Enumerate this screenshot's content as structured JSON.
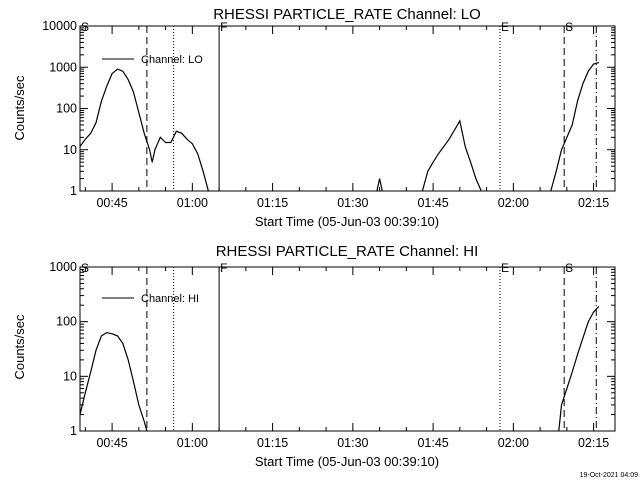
{
  "chart_data": [
    {
      "type": "line",
      "title": "RHESSI PARTICLE_RATE Channel: LO",
      "xlabel": "Start Time (05-Jun-03 00:39:10)",
      "ylabel": "Counts/sec",
      "yscale": "log",
      "ylim": [
        1,
        10000
      ],
      "xlim_minutes": [
        0,
        100
      ],
      "xtick_minutes": [
        6,
        21,
        36,
        51,
        66,
        81,
        96
      ],
      "xtick_labels": [
        "00:45",
        "01:00",
        "01:15",
        "01:30",
        "01:45",
        "02:00",
        "02:15"
      ],
      "ytick_values": [
        1,
        10,
        100,
        1000,
        10000
      ],
      "ytick_labels": [
        "1",
        "10",
        "100",
        "1000",
        "10000"
      ],
      "legend": "Channel: LO",
      "series": [
        {
          "name": "Channel: LO",
          "segments": [
            [
              [
                0,
                12
              ],
              [
                1,
                18
              ],
              [
                2,
                25
              ],
              [
                3,
                45
              ],
              [
                4,
                150
              ],
              [
                5,
                350
              ],
              [
                6,
                700
              ],
              [
                7,
                900
              ],
              [
                8,
                800
              ],
              [
                9,
                500
              ],
              [
                10,
                250
              ],
              [
                11,
                80
              ],
              [
                12,
                25
              ],
              [
                13,
                10
              ],
              [
                13.5,
                5
              ],
              [
                14,
                10
              ],
              [
                15,
                20
              ],
              [
                16,
                15
              ],
              [
                17,
                15
              ],
              [
                18,
                28
              ],
              [
                19,
                25
              ],
              [
                20,
                18
              ],
              [
                21,
                14
              ],
              [
                22,
                8
              ],
              [
                23,
                3
              ],
              [
                24,
                1
              ]
            ],
            [
              [
                55.5,
                1
              ],
              [
                56,
                2
              ],
              [
                56.5,
                1
              ]
            ],
            [
              [
                64,
                1
              ],
              [
                65,
                3
              ],
              [
                66,
                5
              ],
              [
                67,
                8
              ],
              [
                68,
                12
              ],
              [
                69,
                18
              ],
              [
                70,
                30
              ],
              [
                71,
                50
              ],
              [
                72,
                12
              ],
              [
                73,
                5
              ],
              [
                74,
                2
              ],
              [
                75,
                1
              ]
            ],
            [
              [
                88,
                1
              ],
              [
                89,
                3
              ],
              [
                90,
                10
              ],
              [
                91,
                20
              ],
              [
                92,
                40
              ],
              [
                93,
                150
              ],
              [
                94,
                400
              ],
              [
                95,
                800
              ],
              [
                96,
                1200
              ],
              [
                97,
                1300
              ]
            ]
          ]
        }
      ],
      "markers": [
        {
          "minute": 0,
          "style": "dotted",
          "label": "S"
        },
        {
          "minute": 12.5,
          "style": "dashed",
          "label": ""
        },
        {
          "minute": 17.5,
          "style": "dotted",
          "label": ""
        },
        {
          "minute": 26,
          "style": "solid",
          "label": "F"
        },
        {
          "minute": 78.5,
          "style": "dotted",
          "label": "E"
        },
        {
          "minute": 90.5,
          "style": "dashed",
          "label": "S"
        },
        {
          "minute": 96.5,
          "style": "dashdot",
          "label": ""
        }
      ]
    },
    {
      "type": "line",
      "title": "RHESSI PARTICLE_RATE Channel: HI",
      "xlabel": "Start Time (05-Jun-03 00:39:10)",
      "ylabel": "Counts/sec",
      "yscale": "log",
      "ylim": [
        1,
        1000
      ],
      "xlim_minutes": [
        0,
        100
      ],
      "xtick_minutes": [
        6,
        21,
        36,
        51,
        66,
        81,
        96
      ],
      "xtick_labels": [
        "00:45",
        "01:00",
        "01:15",
        "01:30",
        "01:45",
        "02:00",
        "02:15"
      ],
      "ytick_values": [
        1,
        10,
        100,
        1000
      ],
      "ytick_labels": [
        "1",
        "10",
        "100",
        "1000"
      ],
      "legend": "Channel: HI",
      "series": [
        {
          "name": "Channel: HI",
          "segments": [
            [
              [
                0,
                2
              ],
              [
                1,
                5
              ],
              [
                2,
                12
              ],
              [
                3,
                30
              ],
              [
                4,
                55
              ],
              [
                5,
                63
              ],
              [
                6,
                60
              ],
              [
                7,
                55
              ],
              [
                8,
                40
              ],
              [
                9,
                20
              ],
              [
                10,
                8
              ],
              [
                11,
                3
              ],
              [
                12,
                1.5
              ],
              [
                12.5,
                1
              ]
            ],
            [
              [
                89.5,
                1
              ],
              [
                90,
                3
              ],
              [
                91,
                6
              ],
              [
                92,
                12
              ],
              [
                93,
                25
              ],
              [
                94,
                50
              ],
              [
                95,
                100
              ],
              [
                96,
                150
              ],
              [
                97,
                190
              ]
            ]
          ]
        }
      ],
      "markers": [
        {
          "minute": 0,
          "style": "dotted",
          "label": "S"
        },
        {
          "minute": 12.5,
          "style": "dashed",
          "label": ""
        },
        {
          "minute": 17.5,
          "style": "dotted",
          "label": ""
        },
        {
          "minute": 26,
          "style": "solid",
          "label": "F"
        },
        {
          "minute": 78.5,
          "style": "dotted",
          "label": "E"
        },
        {
          "minute": 90.5,
          "style": "dashed",
          "label": "S"
        },
        {
          "minute": 96.5,
          "style": "dashdot",
          "label": ""
        }
      ]
    }
  ],
  "footer": {
    "timestamp": "19-Oct-2021 04:09"
  }
}
